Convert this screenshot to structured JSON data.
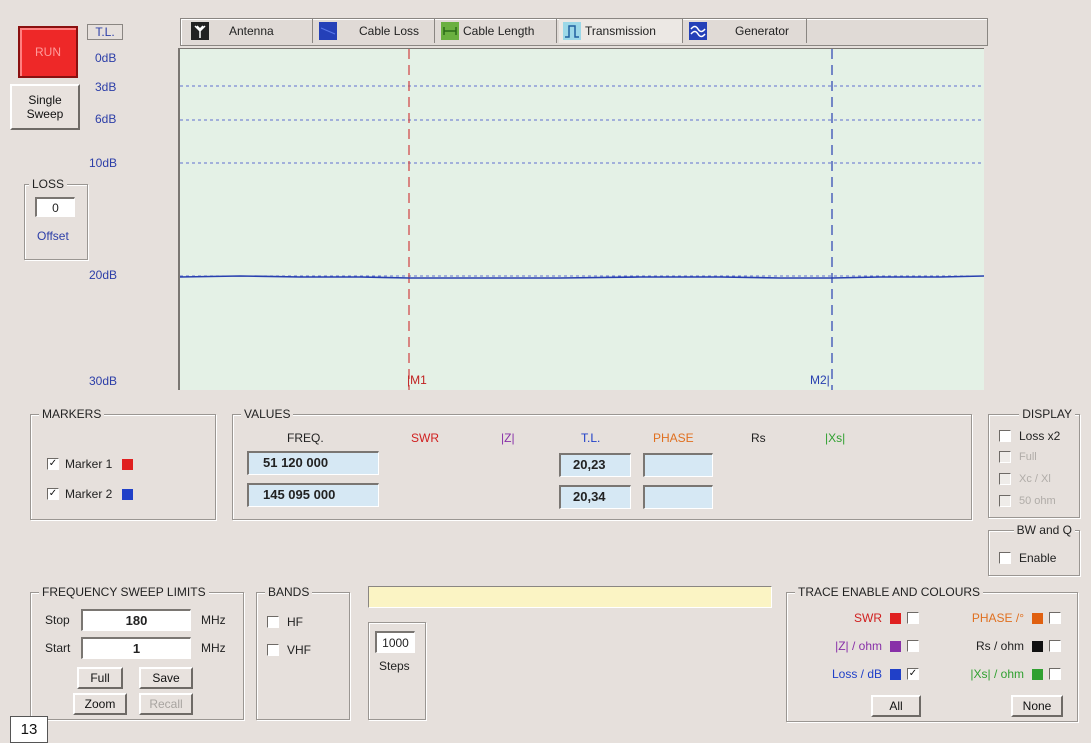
{
  "left_panel": {
    "run_label": "RUN",
    "single_sweep_label": "Single\nSweep",
    "tl_label": "T.L.",
    "db_scale": [
      "0dB",
      "3dB",
      "6dB",
      "10dB",
      "20dB",
      "30dB"
    ],
    "loss_group_title": "LOSS",
    "loss_value": "0",
    "offset_label": "Offset"
  },
  "tabs": [
    {
      "label": "Antenna",
      "icon": "antenna-icon"
    },
    {
      "label": "Cable Loss",
      "icon": "cable-loss-icon"
    },
    {
      "label": "Cable Length",
      "icon": "cable-length-icon"
    },
    {
      "label": "Transmission",
      "icon": "transmission-icon"
    },
    {
      "label": "Generator",
      "icon": "generator-icon"
    }
  ],
  "plot": {
    "marker1_label": "|M1",
    "marker2_label": "M2|",
    "marker1_color": "#d04040",
    "marker2_color": "#2840b0",
    "trace_color": "#2840b0",
    "background": "#e4f1e6"
  },
  "markers": {
    "title": "MARKERS",
    "items": [
      {
        "label": "Marker 1",
        "checked": true,
        "color": "#e02020"
      },
      {
        "label": "Marker 2",
        "checked": true,
        "color": "#2040c8"
      }
    ]
  },
  "values": {
    "title": "VALUES",
    "headers": {
      "freq": "FREQ.",
      "swr": "SWR",
      "z": "|Z|",
      "tl": "T.L.",
      "phase": "PHASE",
      "rs": "Rs",
      "xs": "|Xs|"
    },
    "rows": [
      {
        "freq": "51 120 000",
        "tl": "20,23",
        "phase": ""
      },
      {
        "freq": "145 095 000",
        "tl": "20,34",
        "phase": ""
      }
    ]
  },
  "display": {
    "title": "DISPLAY",
    "items": [
      {
        "label": "Loss x2",
        "enabled": true
      },
      {
        "label": "Full",
        "enabled": false
      },
      {
        "label": "Xc / Xl",
        "enabled": false
      },
      {
        "label": "50 ohm",
        "enabled": false
      }
    ]
  },
  "bwq": {
    "title": "BW and Q",
    "enable_label": "Enable"
  },
  "sweep": {
    "title": "FREQUENCY SWEEP LIMITS",
    "stop_label": "Stop",
    "stop_value": "180",
    "start_label": "Start",
    "start_value": "1",
    "unit": "MHz",
    "full_label": "Full",
    "save_label": "Save",
    "zoom_label": "Zoom",
    "recall_label": "Recall"
  },
  "bands": {
    "title": "BANDS",
    "hf_label": "HF",
    "vhf_label": "VHF"
  },
  "steps": {
    "value": "1000",
    "label": "Steps"
  },
  "status_text": "",
  "trace": {
    "title": "TRACE ENABLE AND COLOURS",
    "items": [
      {
        "label": "SWR",
        "color": "#e02020",
        "text_color": "#d02020",
        "checked": false
      },
      {
        "label": "PHASE /°",
        "color": "#e06010",
        "text_color": "#e07020",
        "checked": false
      },
      {
        "label": "|Z| / ohm",
        "color": "#8830a8",
        "text_color": "#8830a8",
        "checked": false
      },
      {
        "label": "Rs / ohm",
        "color": "#111111",
        "text_color": "#222222",
        "checked": false
      },
      {
        "label": "Loss / dB",
        "color": "#2040c8",
        "text_color": "#2040c8",
        "checked": true
      },
      {
        "label": "|Xs| / ohm",
        "color": "#30a030",
        "text_color": "#30a030",
        "checked": false
      }
    ],
    "all_label": "All",
    "none_label": "None"
  },
  "page_number": "13"
}
